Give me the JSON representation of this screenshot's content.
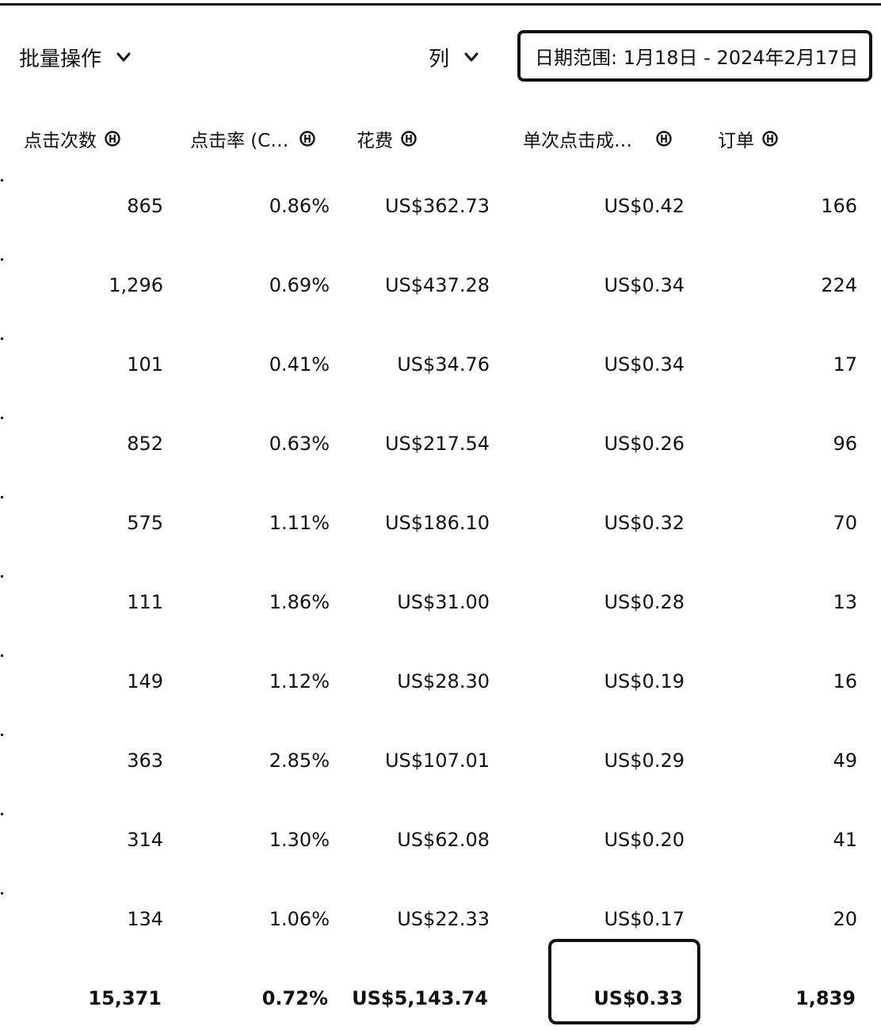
{
  "toolbar": {
    "bulk_actions_label": "批量操作",
    "columns_label": "列",
    "date_range_label": "日期范围: 1月18日 - 2024年2月17日"
  },
  "table": {
    "columns": [
      "点击次数",
      "点击率 (C…",
      "花费",
      "单次点击成…",
      "订单"
    ],
    "rows": [
      [
        "865",
        "0.86%",
        "US$362.73",
        "US$0.42",
        "166"
      ],
      [
        "1,296",
        "0.69%",
        "US$437.28",
        "US$0.34",
        "224"
      ],
      [
        "101",
        "0.41%",
        "US$34.76",
        "US$0.34",
        "17"
      ],
      [
        "852",
        "0.63%",
        "US$217.54",
        "US$0.26",
        "96"
      ],
      [
        "575",
        "1.11%",
        "US$186.10",
        "US$0.32",
        "70"
      ],
      [
        "111",
        "1.86%",
        "US$31.00",
        "US$0.28",
        "13"
      ],
      [
        "149",
        "1.12%",
        "US$28.30",
        "US$0.19",
        "16"
      ],
      [
        "363",
        "2.85%",
        "US$107.01",
        "US$0.29",
        "49"
      ],
      [
        "314",
        "1.30%",
        "US$62.08",
        "US$0.20",
        "41"
      ],
      [
        "134",
        "1.06%",
        "US$22.33",
        "US$0.17",
        "20"
      ]
    ],
    "totals": [
      "15,371",
      "0.72%",
      "US$5,143.74",
      "US$0.33",
      "1,839"
    ]
  },
  "icons": {
    "dropdown": "chevron-down-icon",
    "column_info": "info-icon"
  }
}
